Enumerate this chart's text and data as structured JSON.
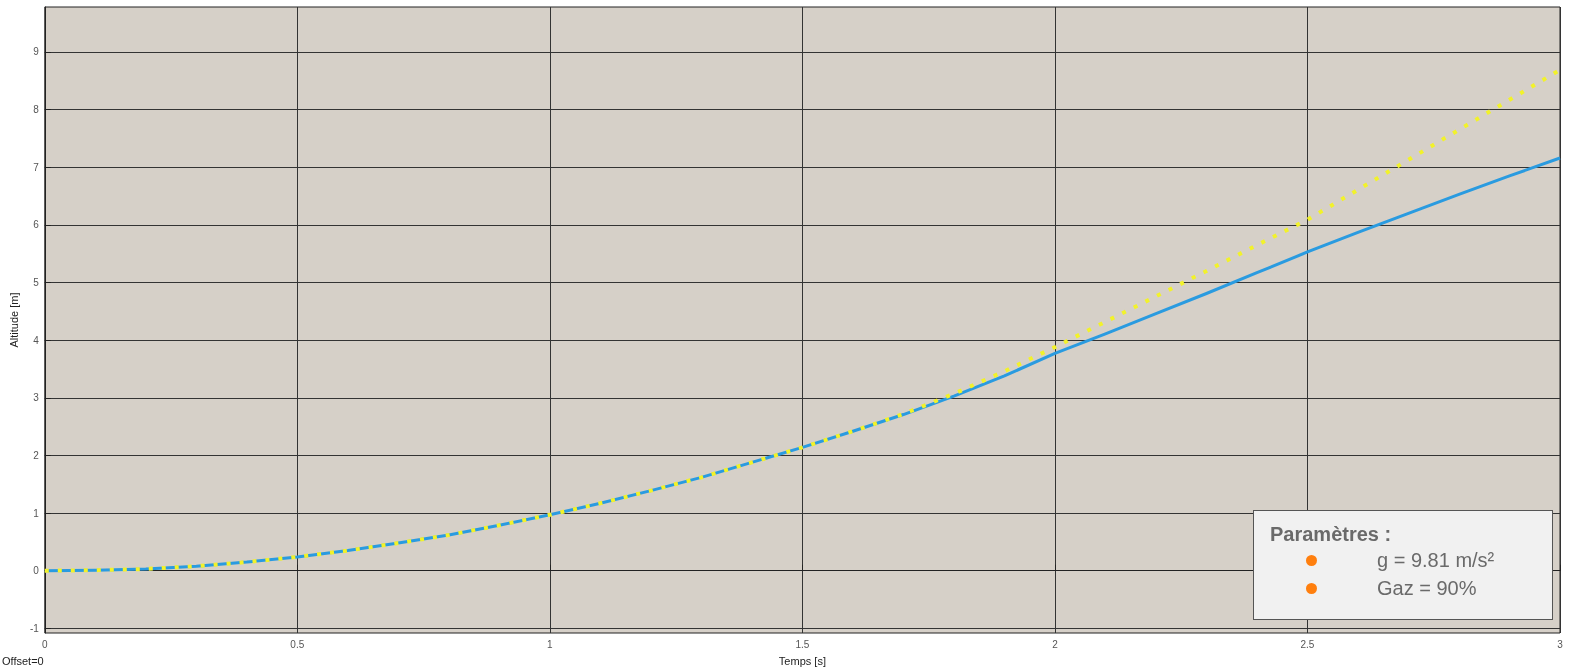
{
  "chart_data": {
    "type": "line",
    "xlabel": "Temps [s]",
    "ylabel": "Altitude [m]",
    "xlim": [
      0,
      3
    ],
    "xticks": [
      0,
      0.5,
      1,
      1.5,
      2,
      2.5,
      3
    ],
    "ylim": [
      -1.08,
      9.78
    ],
    "yticks": [
      -1,
      0,
      1,
      2,
      3,
      4,
      5,
      6,
      7,
      8,
      9
    ],
    "grid": true,
    "marker": "none",
    "x": [
      0,
      0.1,
      0.2,
      0.3,
      0.4,
      0.5,
      0.6,
      0.7,
      0.8,
      0.9,
      1.0,
      1.1,
      1.2,
      1.3,
      1.4,
      1.5,
      1.6,
      1.7,
      1.8,
      1.9,
      2.0,
      2.1,
      2.2,
      2.3,
      2.4,
      2.5,
      2.6,
      2.7,
      2.8,
      2.9,
      3.0
    ],
    "series": [
      {
        "color": "#f2f22a",
        "line_style": "dotted",
        "values": [
          0,
          0.01,
          0.03,
          0.08,
          0.15,
          0.24,
          0.35,
          0.48,
          0.62,
          0.79,
          0.97,
          1.17,
          1.39,
          1.62,
          1.88,
          2.14,
          2.42,
          2.72,
          3.07,
          3.46,
          3.88,
          4.32,
          4.76,
          5.2,
          5.65,
          6.09,
          6.61,
          7.13,
          7.65,
          8.17,
          8.69
        ]
      },
      {
        "color": "#2a9be0",
        "line_style": "solid",
        "values": [
          0,
          0.01,
          0.03,
          0.08,
          0.15,
          0.24,
          0.35,
          0.48,
          0.62,
          0.79,
          0.97,
          1.17,
          1.39,
          1.62,
          1.88,
          2.14,
          2.42,
          2.71,
          3.03,
          3.38,
          3.77,
          4.11,
          4.46,
          4.81,
          5.17,
          5.53,
          5.87,
          6.2,
          6.53,
          6.85,
          7.16
        ]
      }
    ],
    "annotations": [
      "Offset=0",
      "Paramètres :",
      "g = 9.81 m/s²",
      "Gaz = 90%"
    ]
  }
}
